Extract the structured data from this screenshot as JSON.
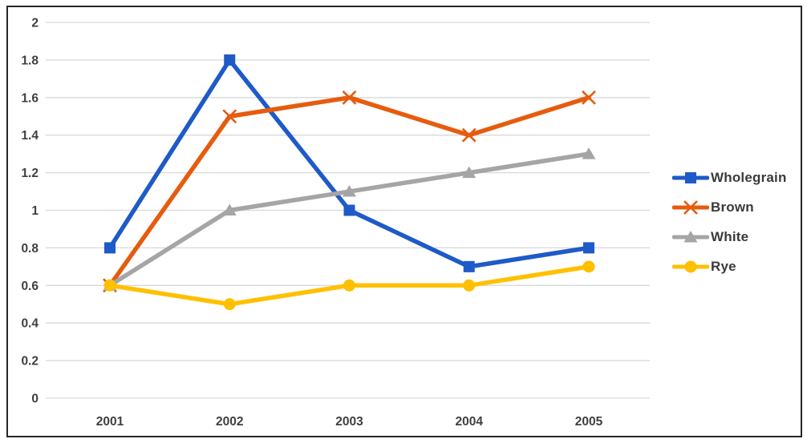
{
  "chart_data": {
    "type": "line",
    "categories": [
      "2001",
      "2002",
      "2003",
      "2004",
      "2005"
    ],
    "series": [
      {
        "name": "Wholegrain",
        "values": [
          0.8,
          1.8,
          1.0,
          0.7,
          0.8
        ],
        "color": "#1E5AC8",
        "marker": "square"
      },
      {
        "name": "Brown",
        "values": [
          0.6,
          1.5,
          1.6,
          1.4,
          1.6
        ],
        "color": "#E65C0F",
        "marker": "x"
      },
      {
        "name": "White",
        "values": [
          0.6,
          1.0,
          1.1,
          1.2,
          1.3
        ],
        "color": "#A5A5A5",
        "marker": "triangle"
      },
      {
        "name": "Rye",
        "values": [
          0.6,
          0.5,
          0.6,
          0.6,
          0.7
        ],
        "color": "#FFC000",
        "marker": "circle"
      }
    ],
    "title": "",
    "xlabel": "",
    "ylabel": "",
    "ylim": [
      0,
      2
    ],
    "ytick_step": 0.2,
    "ytick_labels": [
      "0",
      "0.2",
      "0.4",
      "0.6",
      "0.8",
      "1",
      "1.2",
      "1.4",
      "1.6",
      "1.8",
      "2"
    ],
    "grid": true,
    "legend_position": "right"
  },
  "colors": {
    "gridline": "#D9D9D9",
    "axis_label": "#404040",
    "legend_text": "#3A3A3A",
    "border": "#262626",
    "background": "#FFFFFF"
  }
}
